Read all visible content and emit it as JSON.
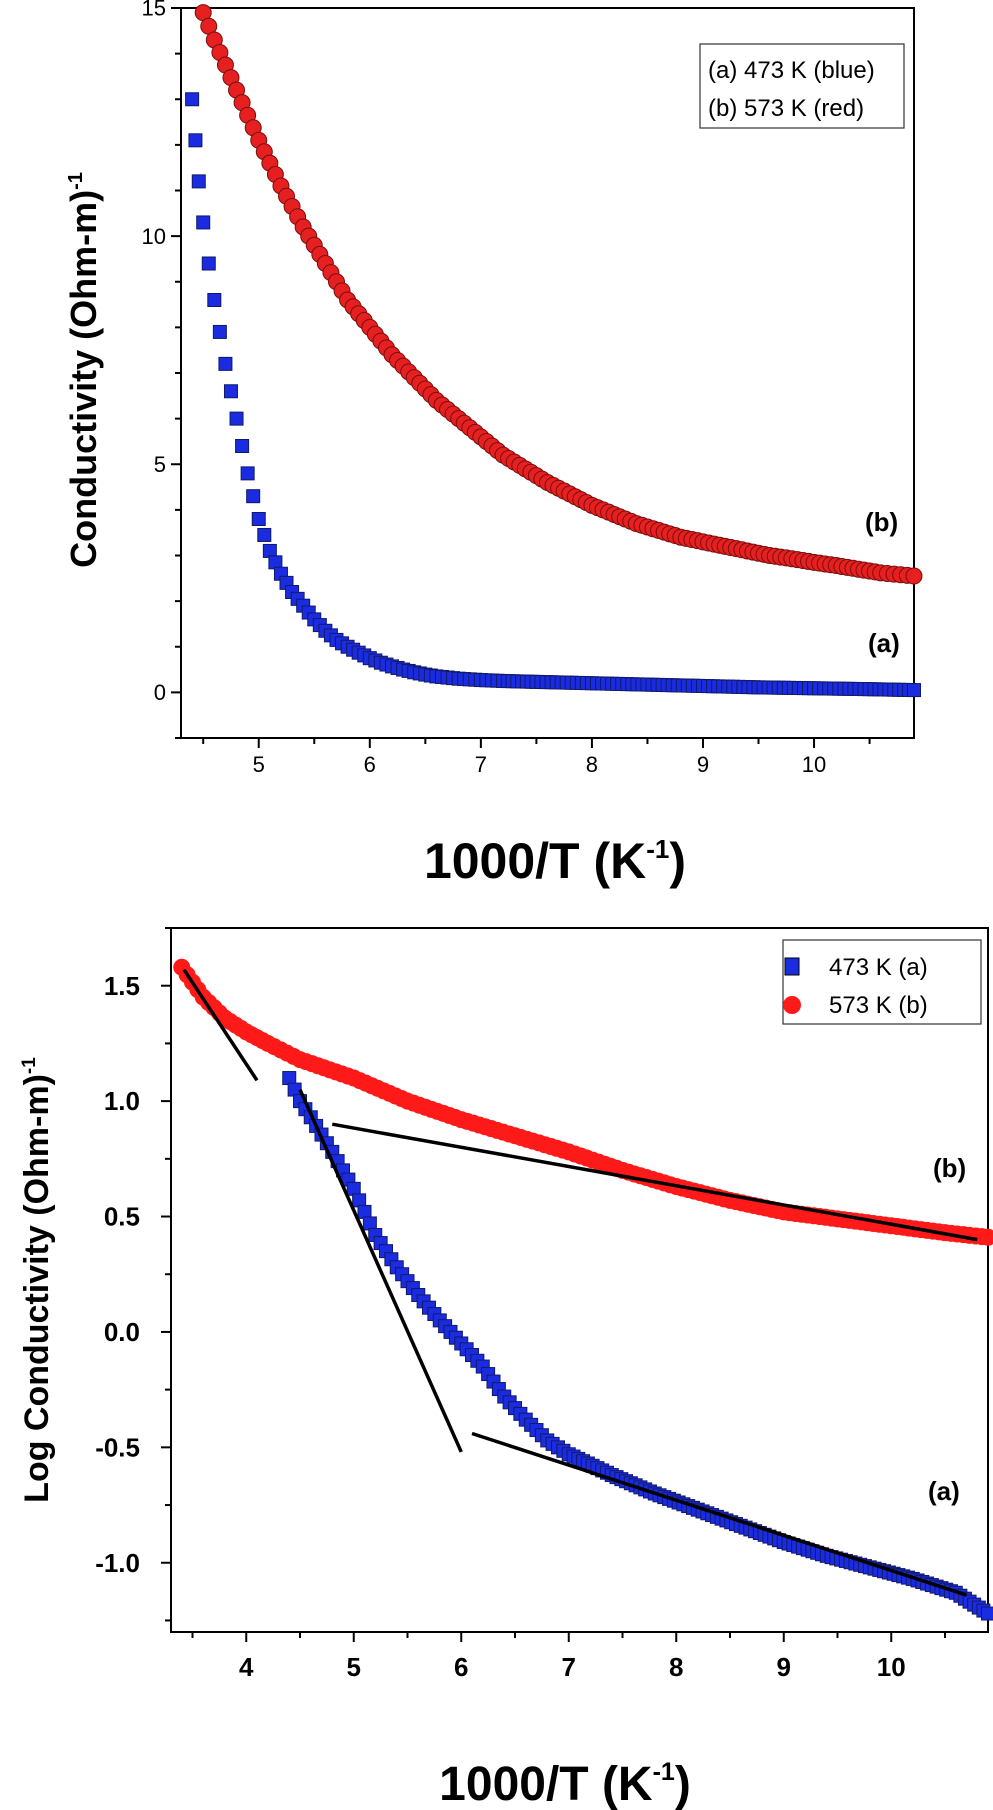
{
  "chart_data": [
    {
      "type": "scatter",
      "xlabel_main": "1000/T (K",
      "xlabel_sup": "-1",
      "xlabel_end": ")",
      "ylabel_main": "Conductivity (Ohm-m)",
      "ylabel_sup": "-1",
      "xlim": [
        4.3,
        10.9
      ],
      "ylim": [
        -1,
        15
      ],
      "xticks": [
        5,
        6,
        7,
        8,
        9,
        10
      ],
      "yticks": [
        0,
        5,
        10,
        15
      ],
      "grid": false,
      "legend_position": "top-right",
      "legend": [
        "(a) 473 K (blue)",
        "(b) 573 K (red)"
      ],
      "curve_labels": [
        "(a)",
        "(b)"
      ],
      "colors": {
        "a": "#1a2be0",
        "b": "#e62020"
      },
      "series": [
        {
          "name": "(a) 473 K (blue)",
          "marker": "square",
          "x": [
            4.4,
            4.43,
            4.46,
            4.5,
            4.55,
            4.6,
            4.7,
            4.8,
            4.9,
            5.0,
            5.1,
            5.2,
            5.3,
            5.4,
            5.5,
            5.6,
            5.7,
            5.8,
            5.9,
            6.0,
            6.1,
            6.2,
            6.3,
            6.4,
            6.5,
            6.6,
            6.8,
            7.0,
            7.2,
            7.5,
            8.0,
            8.5,
            9.0,
            9.5,
            10.0,
            10.5,
            10.9
          ],
          "y": [
            13.0,
            12.1,
            11.2,
            10.3,
            9.4,
            8.6,
            7.2,
            6.0,
            4.8,
            3.8,
            3.1,
            2.6,
            2.2,
            1.9,
            1.6,
            1.35,
            1.15,
            1.0,
            0.87,
            0.75,
            0.65,
            0.57,
            0.5,
            0.44,
            0.39,
            0.35,
            0.3,
            0.27,
            0.25,
            0.23,
            0.2,
            0.17,
            0.14,
            0.11,
            0.09,
            0.07,
            0.05
          ]
        },
        {
          "name": "(b) 573 K (red)",
          "marker": "circle",
          "x": [
            4.5,
            4.6,
            4.8,
            5.0,
            5.2,
            5.4,
            5.6,
            5.8,
            6.0,
            6.2,
            6.4,
            6.6,
            6.8,
            7.0,
            7.2,
            7.4,
            7.6,
            7.8,
            8.0,
            8.2,
            8.4,
            8.6,
            8.8,
            9.0,
            9.2,
            9.4,
            9.6,
            9.8,
            10.0,
            10.2,
            10.4,
            10.6,
            10.9
          ],
          "y": [
            14.9,
            14.3,
            13.2,
            12.1,
            11.1,
            10.2,
            9.4,
            8.6,
            8.0,
            7.4,
            6.9,
            6.4,
            6.0,
            5.6,
            5.2,
            4.9,
            4.6,
            4.35,
            4.1,
            3.9,
            3.7,
            3.55,
            3.4,
            3.3,
            3.2,
            3.1,
            3.0,
            2.93,
            2.85,
            2.78,
            2.7,
            2.62,
            2.55
          ]
        }
      ]
    },
    {
      "type": "scatter",
      "xlabel_main": "1000/T (K",
      "xlabel_sup": "-1",
      "xlabel_end": ")",
      "ylabel_main": "Log Conductivity (Ohm-m)",
      "ylabel_sup": "-1",
      "xlim": [
        3.3,
        10.9
      ],
      "ylim": [
        -1.3,
        1.75
      ],
      "xticks": [
        4,
        5,
        6,
        7,
        8,
        9,
        10
      ],
      "yticks": [
        -1.0,
        -0.5,
        0.0,
        0.5,
        1.0,
        1.5
      ],
      "ytick_labels": [
        "-1.0",
        "-0.5",
        "0.0",
        "0.5",
        "1.0",
        "1.5"
      ],
      "grid": false,
      "legend_position": "top-right",
      "legend": [
        "473 K (a)",
        "573 K (b)"
      ],
      "curve_labels": [
        "(a)",
        "(b)"
      ],
      "colors": {
        "a": "#1a2be0",
        "b": "#ff1a1a",
        "fit": "#000000"
      },
      "series": [
        {
          "name": "473 K (a)",
          "marker": "square",
          "x": [
            4.4,
            4.5,
            4.6,
            4.8,
            5.0,
            5.2,
            5.4,
            5.6,
            5.8,
            6.0,
            6.2,
            6.4,
            6.6,
            6.8,
            7.0,
            7.4,
            7.8,
            8.2,
            8.6,
            9.0,
            9.4,
            9.8,
            10.2,
            10.6,
            10.9
          ],
          "y": [
            1.1,
            1.0,
            0.93,
            0.78,
            0.62,
            0.42,
            0.28,
            0.16,
            0.05,
            -0.05,
            -0.15,
            -0.28,
            -0.38,
            -0.47,
            -0.53,
            -0.62,
            -0.7,
            -0.77,
            -0.84,
            -0.91,
            -0.97,
            -1.02,
            -1.07,
            -1.13,
            -1.22
          ]
        },
        {
          "name": "573 K (b)",
          "marker": "circle",
          "x": [
            3.4,
            3.6,
            3.8,
            4.0,
            4.2,
            4.5,
            5.0,
            5.5,
            6.0,
            6.5,
            7.0,
            7.5,
            8.0,
            8.5,
            9.0,
            9.5,
            10.0,
            10.5,
            10.9
          ],
          "y": [
            1.58,
            1.45,
            1.36,
            1.3,
            1.25,
            1.18,
            1.1,
            1.0,
            0.92,
            0.85,
            0.78,
            0.7,
            0.63,
            0.57,
            0.52,
            0.49,
            0.46,
            0.43,
            0.41
          ]
        }
      ],
      "fit_lines": [
        {
          "x": [
            3.42,
            4.1
          ],
          "y": [
            1.57,
            1.09
          ]
        },
        {
          "x": [
            4.8,
            10.8
          ],
          "y": [
            0.9,
            0.4
          ]
        },
        {
          "x": [
            4.5,
            6.0
          ],
          "y": [
            1.05,
            -0.52
          ]
        },
        {
          "x": [
            6.1,
            10.7
          ],
          "y": [
            -0.44,
            -1.14
          ]
        }
      ]
    }
  ]
}
